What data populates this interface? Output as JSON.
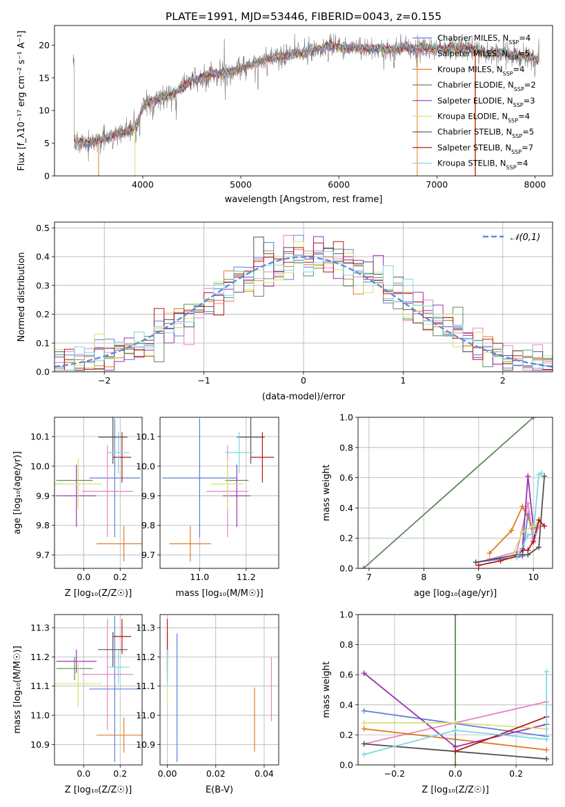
{
  "figure_title": "PLATE=1991, MJD=53446, FIBERID=0043, z=0.155",
  "colors": {
    "Chabrier MILES": "#5b7fd8",
    "Salpeter MILES": "#e882c2",
    "Kroupa MILES": "#e07b25",
    "Chabrier ELODIE": "#5c8a5c",
    "Salpeter ELODIE": "#9b30b0",
    "Kroupa ELODIE": "#d8e070",
    "Chabrier STELIB": "#505050",
    "Salpeter STELIB": "#b01818",
    "Kroupa STELIB": "#7dd8e0",
    "data": "#777777",
    "gaussian": "#5b8cd6"
  },
  "chart_data": [
    {
      "id": "spectrum",
      "type": "line",
      "xlabel": "wavelength [Angstrom, rest frame]",
      "ylabel": "Flux [f_λ10⁻¹⁷ erg cm⁻² s⁻¹ A⁻¹]",
      "xlim": [
        3100,
        8180
      ],
      "ylim": [
        0,
        23
      ],
      "xticks": [
        4000,
        5000,
        6000,
        7000,
        8000
      ],
      "yticks": [
        0,
        5,
        10,
        15,
        20
      ],
      "grid": false,
      "legend_position": "top-right",
      "legend": [
        "Chabrier MILES, N_SSP=4",
        "Salpeter MILES, N_SSP=5",
        "Kroupa MILES, N_SSP=4",
        "Chabrier ELODIE, N_SSP=2",
        "Salpeter ELODIE, N_SSP=3",
        "Kroupa ELODIE, N_SSP=4",
        "Chabrier STELIB, N_SSP=5",
        "Salpeter STELIB, N_SSP=7",
        "Kroupa STELIB, N_SSP=4"
      ],
      "continuum": [
        [
          3300,
          5.0
        ],
        [
          3500,
          5.2
        ],
        [
          3700,
          6.2
        ],
        [
          3900,
          7.0
        ],
        [
          3950,
          8.0
        ],
        [
          4000,
          10.5
        ],
        [
          4100,
          11.5
        ],
        [
          4300,
          12.5
        ],
        [
          4500,
          14.5
        ],
        [
          4700,
          15.5
        ],
        [
          4900,
          16.0
        ],
        [
          5100,
          17.0
        ],
        [
          5300,
          18.0
        ],
        [
          5500,
          18.5
        ],
        [
          5700,
          19.0
        ],
        [
          5900,
          20.0
        ],
        [
          6100,
          19.5
        ],
        [
          6300,
          19.5
        ],
        [
          6500,
          19.3
        ],
        [
          6700,
          19.6
        ],
        [
          6900,
          19.5
        ],
        [
          7100,
          19.4
        ],
        [
          7300,
          19.7
        ],
        [
          7500,
          18.8
        ],
        [
          7700,
          18.7
        ],
        [
          7900,
          18.3
        ],
        [
          8050,
          17.6
        ]
      ]
    },
    {
      "id": "residuals",
      "type": "histogram",
      "xlabel": "(data-model)/error",
      "ylabel": "Normed distribution",
      "xlim": [
        -2.5,
        2.5
      ],
      "ylim": [
        0,
        0.52
      ],
      "xticks": [
        -2,
        -1,
        0,
        1,
        2
      ],
      "yticks": [
        0.0,
        0.1,
        0.2,
        0.3,
        0.4,
        0.5
      ],
      "grid": true,
      "legend": "𝒩(0,1)",
      "legend_position": "top-right"
    },
    {
      "id": "age-vs-Z",
      "type": "errorbar",
      "xlabel": "Z [log₁₀(Z/Z☉)]",
      "ylabel": "age  [log₁₀(age/yr)]",
      "xlim": [
        -0.16,
        0.32
      ],
      "ylim": [
        9.655,
        10.165
      ],
      "xticks": [
        0.0,
        0.2
      ],
      "yticks": [
        9.7,
        9.8,
        9.9,
        10.0,
        10.1
      ],
      "grid": true,
      "points": [
        {
          "model": "Chabrier MILES",
          "x": 0.17,
          "xerr": 0.14,
          "y": 9.96,
          "yerr": 0.2
        },
        {
          "model": "Salpeter MILES",
          "x": 0.13,
          "xerr": 0.14,
          "y": 9.915,
          "yerr": 0.155
        },
        {
          "model": "Kroupa MILES",
          "x": 0.22,
          "xerr": 0.15,
          "y": 9.738,
          "yerr": 0.06
        },
        {
          "model": "Chabrier ELODIE",
          "x": -0.05,
          "xerr": 0.1,
          "y": 9.952,
          "yerr": 0.0
        },
        {
          "model": "Salpeter ELODIE",
          "x": -0.04,
          "xerr": 0.11,
          "y": 9.9,
          "yerr": 0.105
        },
        {
          "model": "Kroupa ELODIE",
          "x": -0.03,
          "xerr": 0.13,
          "y": 9.94,
          "yerr": 0.085
        },
        {
          "model": "Chabrier STELIB",
          "x": 0.16,
          "xerr": 0.08,
          "y": 10.098,
          "yerr": 0.09
        },
        {
          "model": "Salpeter STELIB",
          "x": 0.21,
          "xerr": 0.05,
          "y": 10.03,
          "yerr": 0.085
        },
        {
          "model": "Kroupa STELIB",
          "x": 0.19,
          "xerr": 0.06,
          "y": 10.046,
          "yerr": 0.07
        }
      ]
    },
    {
      "id": "age-vs-mass",
      "type": "errorbar",
      "xlabel": "mass [log₁₀(M/M☉)]",
      "ylabel": "",
      "xlim": [
        10.83,
        11.34
      ],
      "ylim": [
        9.655,
        10.165
      ],
      "xticks": [
        11.0,
        11.2
      ],
      "yticks": [
        9.7,
        9.8,
        9.9,
        10.0,
        10.1
      ],
      "grid": true,
      "points": [
        {
          "model": "Chabrier MILES",
          "x": 11.0,
          "xerr": 0.16,
          "y": 9.96,
          "yerr": 0.2
        },
        {
          "model": "Salpeter MILES",
          "x": 11.12,
          "xerr": 0.09,
          "y": 9.915,
          "yerr": 0.155
        },
        {
          "model": "Kroupa MILES",
          "x": 10.96,
          "xerr": 0.09,
          "y": 9.738,
          "yerr": 0.06
        },
        {
          "model": "Chabrier ELODIE",
          "x": 11.16,
          "xerr": 0.05,
          "y": 9.952,
          "yerr": 0.0
        },
        {
          "model": "Salpeter ELODIE",
          "x": 11.16,
          "xerr": 0.06,
          "y": 9.9,
          "yerr": 0.105
        },
        {
          "model": "Kroupa ELODIE",
          "x": 11.12,
          "xerr": 0.07,
          "y": 9.94,
          "yerr": 0.085
        },
        {
          "model": "Chabrier STELIB",
          "x": 11.22,
          "xerr": 0.06,
          "y": 10.098,
          "yerr": 0.09
        },
        {
          "model": "Salpeter STELIB",
          "x": 11.27,
          "xerr": 0.05,
          "y": 10.03,
          "yerr": 0.085
        },
        {
          "model": "Kroupa STELIB",
          "x": 11.17,
          "xerr": 0.06,
          "y": 10.046,
          "yerr": 0.07
        }
      ]
    },
    {
      "id": "weight-vs-age",
      "type": "line",
      "xlabel": "age  [log₁₀(age/yr)]",
      "ylabel": "mass weight",
      "xlim": [
        6.8,
        10.35
      ],
      "ylim": [
        0,
        1
      ],
      "xticks": [
        7,
        8,
        9,
        10
      ],
      "yticks": [
        0.0,
        0.2,
        0.4,
        0.6,
        0.8,
        1.0
      ],
      "grid": true,
      "series": [
        {
          "model": "Chabrier MILES",
          "x": [
            8.95,
            9.8,
            9.9,
            10.0,
            10.1
          ],
          "y": [
            0.04,
            0.08,
            0.36,
            0.2,
            0.3
          ]
        },
        {
          "model": "Salpeter MILES",
          "x": [
            9.2,
            9.7,
            9.9,
            10.0,
            10.1
          ],
          "y": [
            0.06,
            0.11,
            0.43,
            0.17,
            0.28
          ]
        },
        {
          "model": "Kroupa MILES",
          "x": [
            9.2,
            9.6,
            9.8,
            10.0
          ],
          "y": [
            0.1,
            0.25,
            0.41,
            0.26
          ]
        },
        {
          "model": "Chabrier ELODIE",
          "x": [
            6.9,
            10.0
          ],
          "y": [
            0.0,
            1.0
          ]
        },
        {
          "model": "Salpeter ELODIE",
          "x": [
            9.8,
            9.9,
            10.0
          ],
          "y": [
            0.13,
            0.61,
            0.27
          ]
        },
        {
          "model": "Kroupa ELODIE",
          "x": [
            9.6,
            9.8,
            10.0,
            10.1
          ],
          "y": [
            0.07,
            0.24,
            0.28,
            0.3
          ]
        },
        {
          "model": "Chabrier STELIB",
          "x": [
            8.95,
            9.7,
            9.9,
            10.1,
            10.2
          ],
          "y": [
            0.04,
            0.09,
            0.09,
            0.14,
            0.61
          ]
        },
        {
          "model": "Salpeter STELIB",
          "x": [
            9.0,
            9.4,
            9.7,
            9.8,
            9.9,
            10.0,
            10.1,
            10.2
          ],
          "y": [
            0.02,
            0.05,
            0.08,
            0.12,
            0.12,
            0.18,
            0.32,
            0.28
          ]
        },
        {
          "model": "Kroupa STELIB",
          "x": [
            9.7,
            9.9,
            10.0,
            10.1,
            10.15
          ],
          "y": [
            0.07,
            0.22,
            0.23,
            0.62,
            0.63
          ]
        }
      ]
    },
    {
      "id": "mass-vs-Z",
      "type": "errorbar",
      "xlabel": "Z [log₁₀(Z/Z☉)]",
      "ylabel": "mass [log₁₀(M/M☉)]",
      "xlim": [
        -0.16,
        0.32
      ],
      "ylim": [
        10.83,
        11.345
      ],
      "xticks": [
        0.0,
        0.2
      ],
      "yticks": [
        10.9,
        11.0,
        11.1,
        11.2,
        11.3
      ],
      "grid": true,
      "points": [
        {
          "model": "Chabrier MILES",
          "x": 0.17,
          "xerr": 0.14,
          "y": 11.09,
          "yerr": 0.25
        },
        {
          "model": "Salpeter MILES",
          "x": 0.13,
          "xerr": 0.14,
          "y": 11.14,
          "yerr": 0.19
        },
        {
          "model": "Kroupa MILES",
          "x": 0.22,
          "xerr": 0.15,
          "y": 10.932,
          "yerr": 0.06
        },
        {
          "model": "Chabrier ELODIE",
          "x": -0.05,
          "xerr": 0.1,
          "y": 11.16,
          "yerr": 0.04
        },
        {
          "model": "Salpeter ELODIE",
          "x": -0.04,
          "xerr": 0.11,
          "y": 11.185,
          "yerr": 0.04
        },
        {
          "model": "Kroupa ELODIE",
          "x": -0.03,
          "xerr": 0.13,
          "y": 11.108,
          "yerr": 0.08
        },
        {
          "model": "Chabrier STELIB",
          "x": 0.16,
          "xerr": 0.08,
          "y": 11.225,
          "yerr": 0.06
        },
        {
          "model": "Salpeter STELIB",
          "x": 0.21,
          "xerr": 0.05,
          "y": 11.27,
          "yerr": 0.06
        },
        {
          "model": "Kroupa STELIB",
          "x": 0.19,
          "xerr": 0.06,
          "y": 11.165,
          "yerr": 0.06
        }
      ]
    },
    {
      "id": "mass-vs-EBV",
      "type": "errorbar",
      "xlabel": "E(B-V)",
      "ylabel": "",
      "xlim": [
        -0.003,
        0.046
      ],
      "ylim": [
        10.83,
        11.345
      ],
      "xticks": [
        0.0,
        0.02,
        0.04
      ],
      "yticks": [
        10.9,
        11.0,
        11.1,
        11.2,
        11.3
      ],
      "grid": true,
      "points": [
        {
          "model": "Chabrier MILES",
          "x": 0.004,
          "y": 11.06,
          "yerr": 0.22
        },
        {
          "model": "Salpeter MILES",
          "x": 0.043,
          "y": 11.09,
          "yerr": 0.11
        },
        {
          "model": "Kroupa MILES",
          "x": 0.036,
          "y": 10.985,
          "yerr": 0.11
        },
        {
          "model": "Chabrier ELODIE",
          "x": 0.0,
          "y": 11.16,
          "yerr": 0.04
        },
        {
          "model": "Salpeter ELODIE",
          "x": 0.0,
          "y": 11.185,
          "yerr": 0.04
        },
        {
          "model": "Kroupa ELODIE",
          "x": 0.0,
          "y": 11.108,
          "yerr": 0.08
        },
        {
          "model": "Chabrier STELIB",
          "x": 0.0,
          "y": 11.225,
          "yerr": 0.06
        },
        {
          "model": "Salpeter STELIB",
          "x": 0.0,
          "y": 11.27,
          "yerr": 0.06
        },
        {
          "model": "Kroupa STELIB",
          "x": 0.0,
          "y": 11.165,
          "yerr": 0.06
        }
      ]
    },
    {
      "id": "weight-vs-Z",
      "type": "line",
      "xlabel": "Z [log₁₀(Z/Z☉)]",
      "ylabel": "mass weight",
      "xlim": [
        -0.32,
        0.32
      ],
      "ylim": [
        0,
        1
      ],
      "xticks": [
        -0.2,
        0.0,
        0.2
      ],
      "yticks": [
        0.0,
        0.2,
        0.4,
        0.6,
        0.8,
        1.0
      ],
      "grid": true,
      "series": [
        {
          "model": "Chabrier MILES",
          "x": [
            -0.3,
            0.3
          ],
          "y": [
            0.36,
            0.19
          ]
        },
        {
          "model": "Salpeter MILES",
          "x": [
            -0.3,
            0.3
          ],
          "y": [
            0.14,
            0.42
          ]
        },
        {
          "model": "Kroupa MILES",
          "x": [
            -0.3,
            0.3
          ],
          "y": [
            0.24,
            0.1
          ]
        },
        {
          "model": "Chabrier ELODIE",
          "x": [
            0.0,
            0.0
          ],
          "y": [
            0.0,
            1.0
          ]
        },
        {
          "model": "Salpeter ELODIE",
          "x": [
            -0.3,
            0.0,
            0.3
          ],
          "y": [
            0.61,
            0.12,
            0.27
          ]
        },
        {
          "model": "Kroupa ELODIE",
          "x": [
            -0.3,
            0.0,
            0.3
          ],
          "y": [
            0.28,
            0.28,
            0.24
          ]
        },
        {
          "model": "Chabrier STELIB",
          "x": [
            -0.3,
            0.3
          ],
          "y": [
            0.14,
            0.04
          ]
        },
        {
          "model": "Salpeter STELIB",
          "x": [
            0.0,
            0.3
          ],
          "y": [
            0.09,
            0.32
          ]
        },
        {
          "model": "Kroupa STELIB",
          "x": [
            -0.3,
            0.0,
            0.3,
            0.3
          ],
          "y": [
            0.07,
            0.23,
            0.17,
            0.62
          ]
        }
      ]
    }
  ]
}
